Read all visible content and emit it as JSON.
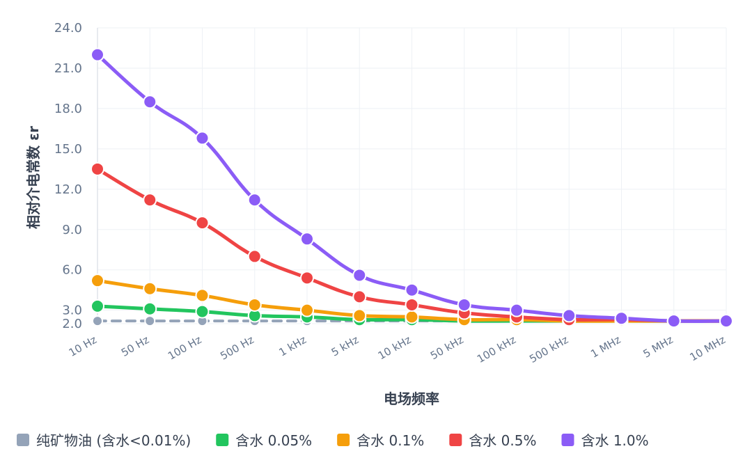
{
  "chart_data": {
    "type": "line",
    "xlabel": "电场频率",
    "ylabel": "相对介电常数 εr",
    "ylim": [
      2.0,
      24.0
    ],
    "yticks": [
      "2.0",
      "3.0",
      "6.0",
      "9.0",
      "12.0",
      "15.0",
      "18.0",
      "21.0",
      "24.0"
    ],
    "categories": [
      "10 Hz",
      "50 Hz",
      "100 Hz",
      "500 Hz",
      "1 kHz",
      "5 kHz",
      "10 kHz",
      "50 kHz",
      "100 kHz",
      "500 kHz",
      "1 MHz",
      "5 MHz",
      "10 MHz"
    ],
    "grid": true,
    "legend_position": "bottom",
    "series": [
      {
        "name": "纯矿物油 (含水<0.01%)",
        "color": "#94a3b8",
        "dashed": true,
        "values": [
          2.2,
          2.2,
          2.2,
          2.2,
          2.2,
          2.2,
          2.2,
          2.2,
          2.2,
          2.2,
          2.2,
          2.2,
          2.2
        ]
      },
      {
        "name": "含水 0.05%",
        "color": "#22c55e",
        "dashed": false,
        "values": [
          3.3,
          3.1,
          2.9,
          2.6,
          2.5,
          2.3,
          2.3,
          2.2,
          2.2,
          2.2,
          2.2,
          2.2,
          2.2
        ]
      },
      {
        "name": "含水 0.1%",
        "color": "#f59e0b",
        "dashed": false,
        "values": [
          5.2,
          4.6,
          4.1,
          3.4,
          3.0,
          2.6,
          2.5,
          2.3,
          2.3,
          2.2,
          2.2,
          2.2,
          2.2
        ]
      },
      {
        "name": "含水 0.5%",
        "color": "#ef4444",
        "dashed": false,
        "values": [
          13.5,
          11.2,
          9.5,
          7.0,
          5.4,
          4.0,
          3.4,
          2.8,
          2.5,
          2.3,
          2.3,
          2.2,
          2.2
        ]
      },
      {
        "name": "含水 1.0%",
        "color": "#8b5cf6",
        "dashed": false,
        "values": [
          22.0,
          18.5,
          15.8,
          11.2,
          8.3,
          5.6,
          4.5,
          3.4,
          3.0,
          2.6,
          2.4,
          2.2,
          2.2
        ]
      }
    ]
  }
}
